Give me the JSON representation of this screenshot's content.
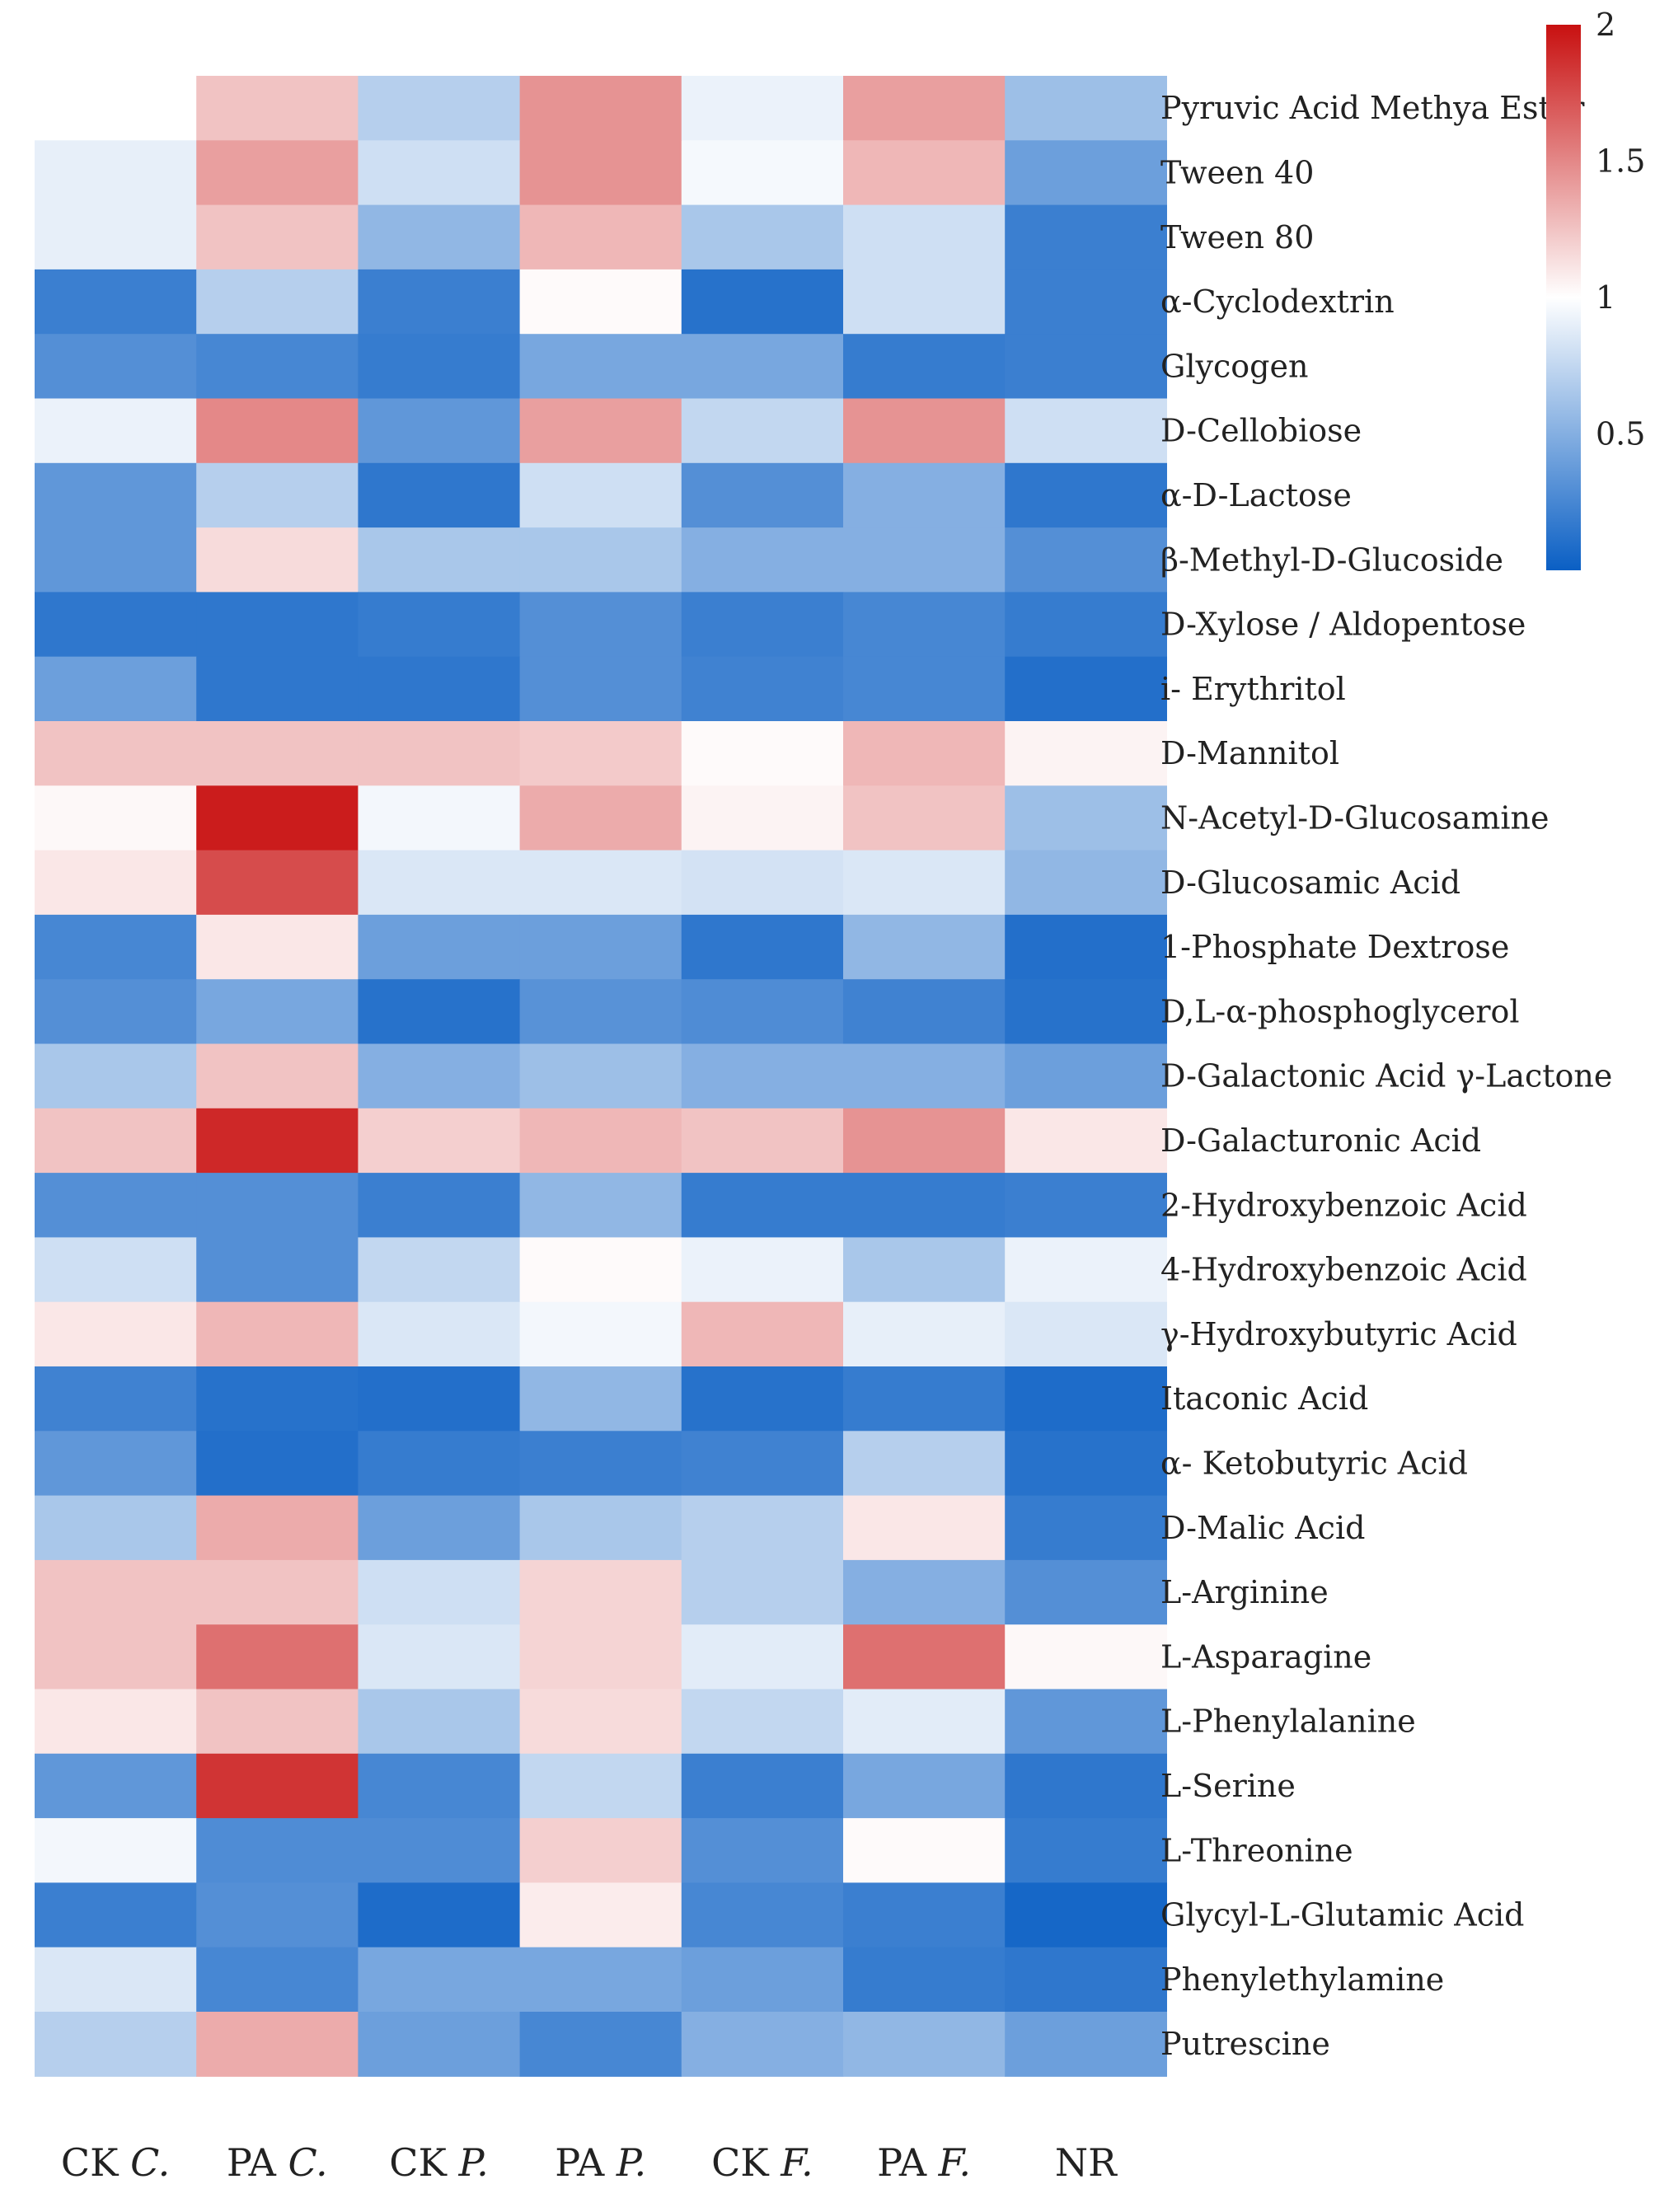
{
  "chart_data": {
    "type": "heatmap",
    "title": "",
    "columns": [
      {
        "prefix": "CK",
        "species": "C."
      },
      {
        "prefix": "PA",
        "species": "C."
      },
      {
        "prefix": "CK",
        "species": "P."
      },
      {
        "prefix": "PA",
        "species": "P."
      },
      {
        "prefix": "CK",
        "species": "F."
      },
      {
        "prefix": "PA",
        "species": "F."
      },
      {
        "prefix": "NR",
        "species": ""
      }
    ],
    "rows": [
      "Pyruvic Acid Methya Ester",
      "Tween 40",
      "Tween 80",
      "α-Cyclodextrin",
      "Glycogen",
      "D-Cellobiose",
      "α-D-Lactose",
      "β-Methyl-D-Glucoside",
      "D-Xylose / Aldopentose",
      "i- Erythritol",
      "D-Mannitol",
      "N-Acetyl-D-Glucosamine",
      "D-Glucosamic Acid",
      "1-Phosphate Dextrose",
      "D,L-α-phosphoglycerol",
      "D-Galactonic Acid γ-Lactone",
      "D-Galacturonic Acid",
      "2-Hydroxybenzoic Acid",
      "4-Hydroxybenzoic Acid",
      "γ-Hydroxybutyric Acid",
      "Itaconic Acid",
      "α- Ketobutyric Acid",
      "D-Malic Acid",
      "L-Arginine",
      "L-Asparagine",
      "L-Phenylalanine",
      "L-Serine",
      "L-Threonine",
      "Glycyl-L-Glutamic Acid",
      "Phenylethylamine",
      "Putrescine"
    ],
    "values": [
      [
        1.0,
        1.25,
        0.7,
        1.45,
        0.92,
        1.4,
        0.6
      ],
      [
        0.9,
        1.4,
        0.8,
        1.45,
        0.96,
        1.3,
        0.4
      ],
      [
        0.9,
        1.25,
        0.55,
        1.3,
        0.65,
        0.8,
        0.2
      ],
      [
        0.2,
        0.7,
        0.2,
        1.02,
        0.12,
        0.8,
        0.2
      ],
      [
        0.3,
        0.25,
        0.18,
        0.45,
        0.45,
        0.18,
        0.2
      ],
      [
        0.92,
        1.5,
        0.35,
        1.4,
        0.75,
        1.45,
        0.8
      ],
      [
        0.35,
        0.7,
        0.15,
        0.8,
        0.3,
        0.5,
        0.15
      ],
      [
        0.35,
        1.15,
        0.65,
        0.65,
        0.5,
        0.5,
        0.3
      ],
      [
        0.15,
        0.15,
        0.18,
        0.3,
        0.2,
        0.25,
        0.18
      ],
      [
        0.4,
        0.15,
        0.15,
        0.3,
        0.22,
        0.25,
        0.1
      ],
      [
        1.25,
        1.25,
        1.25,
        1.22,
        1.02,
        1.3,
        1.05
      ],
      [
        1.03,
        1.95,
        0.95,
        1.35,
        1.05,
        1.25,
        0.6
      ],
      [
        1.1,
        1.75,
        0.85,
        0.85,
        0.82,
        0.85,
        0.55
      ],
      [
        0.25,
        1.1,
        0.4,
        0.4,
        0.15,
        0.55,
        0.1
      ],
      [
        0.3,
        0.45,
        0.12,
        0.32,
        0.28,
        0.22,
        0.12
      ],
      [
        0.65,
        1.25,
        0.5,
        0.6,
        0.5,
        0.5,
        0.4
      ],
      [
        1.25,
        1.9,
        1.2,
        1.3,
        1.25,
        1.45,
        1.1
      ],
      [
        0.3,
        0.3,
        0.2,
        0.55,
        0.18,
        0.18,
        0.2
      ],
      [
        0.8,
        0.3,
        0.75,
        1.02,
        0.92,
        0.65,
        0.92
      ],
      [
        1.1,
        1.3,
        0.85,
        0.95,
        1.3,
        0.9,
        0.85
      ],
      [
        0.22,
        0.12,
        0.1,
        0.55,
        0.12,
        0.18,
        0.08
      ],
      [
        0.35,
        0.1,
        0.18,
        0.2,
        0.22,
        0.7,
        0.12
      ],
      [
        0.65,
        1.35,
        0.4,
        0.65,
        0.7,
        1.1,
        0.18
      ],
      [
        1.25,
        1.25,
        0.8,
        1.18,
        0.7,
        0.5,
        0.3
      ],
      [
        1.25,
        1.6,
        0.85,
        1.18,
        0.88,
        1.6,
        1.03
      ],
      [
        1.1,
        1.25,
        0.65,
        1.15,
        0.75,
        0.88,
        0.35
      ],
      [
        0.35,
        1.85,
        0.25,
        0.75,
        0.2,
        0.45,
        0.15
      ],
      [
        0.95,
        0.28,
        0.28,
        1.2,
        0.3,
        1.02,
        0.18
      ],
      [
        0.2,
        0.3,
        0.08,
        1.08,
        0.25,
        0.2,
        0.05
      ],
      [
        0.85,
        0.25,
        0.45,
        0.45,
        0.4,
        0.18,
        0.15
      ],
      [
        0.7,
        1.35,
        0.4,
        0.25,
        0.5,
        0.55,
        0.4
      ]
    ],
    "colorbar": {
      "min": 0,
      "max": 2,
      "ticks": [
        0.5,
        1,
        1.5,
        2
      ],
      "tick_labels": [
        "0.5",
        "1",
        "1.5",
        "2"
      ],
      "colors": {
        "low": "#0a5fc4",
        "mid": "#ffffff",
        "high": "#c81010"
      }
    },
    "xlabel": "",
    "ylabel": ""
  }
}
